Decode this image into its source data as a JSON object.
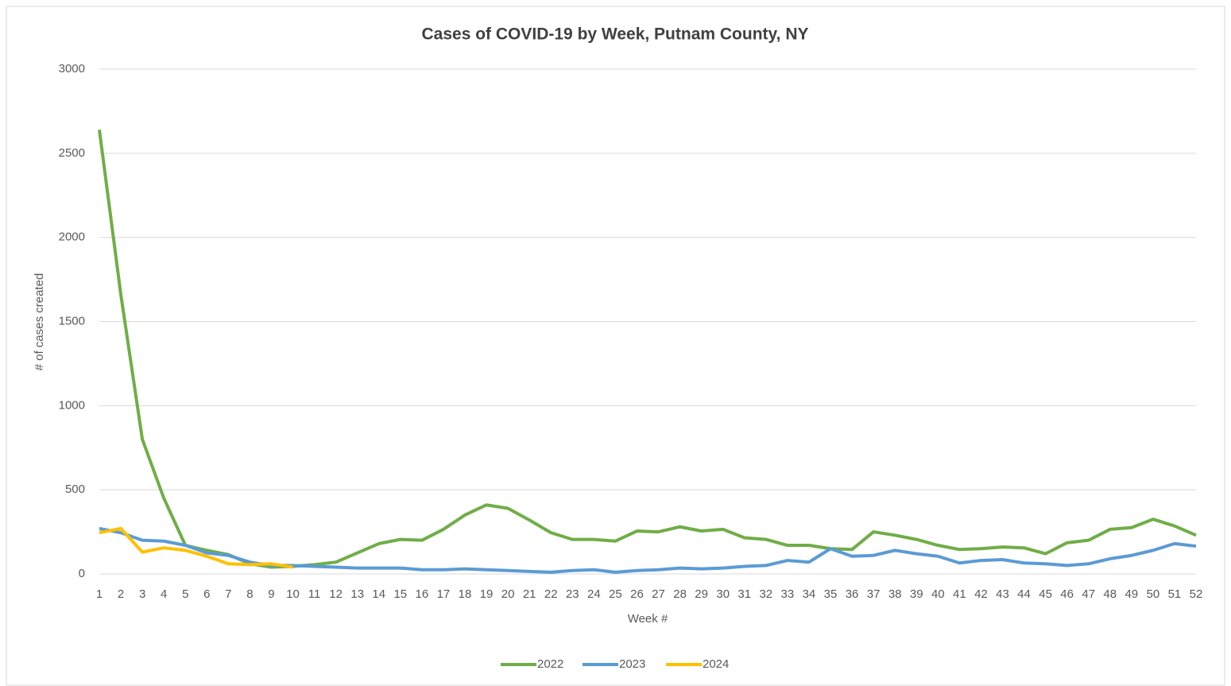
{
  "chart_data": {
    "type": "line",
    "title": "Cases of COVID-19 by Week, Putnam County, NY",
    "xlabel": "Week #",
    "ylabel": "# of cases created",
    "categories": [
      1,
      2,
      3,
      4,
      5,
      6,
      7,
      8,
      9,
      10,
      11,
      12,
      13,
      14,
      15,
      16,
      17,
      18,
      19,
      20,
      21,
      22,
      23,
      24,
      25,
      26,
      27,
      28,
      29,
      30,
      31,
      32,
      33,
      34,
      35,
      36,
      37,
      38,
      39,
      40,
      41,
      42,
      43,
      44,
      45,
      46,
      47,
      48,
      49,
      50,
      51,
      52
    ],
    "series": [
      {
        "name": "2022",
        "color": "#70ad47",
        "values": [
          2640,
          1660,
          800,
          450,
          170,
          140,
          115,
          60,
          40,
          45,
          55,
          70,
          125,
          180,
          205,
          200,
          265,
          350,
          410,
          390,
          320,
          245,
          205,
          205,
          195,
          255,
          250,
          280,
          255,
          265,
          215,
          205,
          170,
          170,
          150,
          145,
          250,
          230,
          205,
          170,
          145,
          150,
          160,
          155,
          120,
          185,
          200,
          265,
          275,
          325,
          285,
          230
        ]
      },
      {
        "name": "2023",
        "color": "#5b9bd5",
        "values": [
          270,
          245,
          200,
          195,
          170,
          125,
          110,
          70,
          50,
          50,
          45,
          40,
          35,
          35,
          35,
          25,
          25,
          30,
          25,
          20,
          15,
          10,
          20,
          25,
          10,
          20,
          25,
          35,
          30,
          35,
          45,
          50,
          80,
          70,
          150,
          105,
          110,
          140,
          120,
          105,
          65,
          80,
          85,
          65,
          60,
          50,
          60,
          90,
          110,
          140,
          180,
          165
        ]
      },
      {
        "name": "2024",
        "color": "#ffc000",
        "values": [
          245,
          270,
          130,
          155,
          140,
          105,
          60,
          55,
          60,
          40,
          null,
          null,
          null,
          null,
          null,
          null,
          null,
          null,
          null,
          null,
          null,
          null,
          null,
          null,
          null,
          null,
          null,
          null,
          null,
          null,
          null,
          null,
          null,
          null,
          null,
          null,
          null,
          null,
          null,
          null,
          null,
          null,
          null,
          null,
          null,
          null,
          null,
          null,
          null,
          null,
          null,
          null
        ]
      }
    ],
    "ylim": [
      0,
      3000
    ],
    "yticks": [
      0,
      500,
      1000,
      1500,
      2000,
      2500,
      3000
    ],
    "grid": true,
    "legend": "bottom"
  }
}
